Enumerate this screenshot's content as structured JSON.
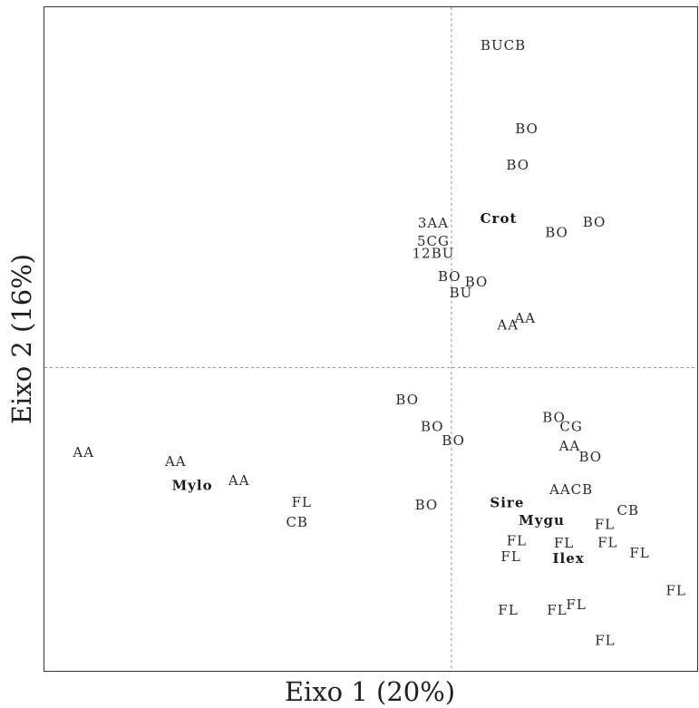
{
  "chart_data": {
    "type": "scatter",
    "title": "",
    "xlabel": "Eixo 1 (20%)",
    "ylabel": "Eixo 2 (16%)",
    "xlim": [
      -10.6,
      6.4
    ],
    "ylim": [
      -8.5,
      10.1
    ],
    "grid": false,
    "reference_lines": {
      "x": 0,
      "y": 0
    },
    "legend": "none",
    "colors": {
      "frame": "#333333",
      "reference_lines": "#9a9a9a",
      "labels": "#2b2b2b"
    },
    "points": [
      {
        "label": "BUCB",
        "x": 1.35,
        "y": 9.03,
        "bold": false
      },
      {
        "label": "BO",
        "x": 1.96,
        "y": 6.7,
        "bold": false
      },
      {
        "label": "BO",
        "x": 1.73,
        "y": 5.68,
        "bold": false
      },
      {
        "label": "3AA",
        "x": -0.47,
        "y": 4.05,
        "bold": false
      },
      {
        "label": "Crot",
        "x": 1.23,
        "y": 4.18,
        "bold": true
      },
      {
        "label": "BO",
        "x": 2.74,
        "y": 3.78,
        "bold": false
      },
      {
        "label": "BO",
        "x": 3.72,
        "y": 4.08,
        "bold": false
      },
      {
        "label": "5CG",
        "x": -0.47,
        "y": 3.55,
        "bold": false
      },
      {
        "label": "12BU",
        "x": -0.47,
        "y": 3.2,
        "bold": false
      },
      {
        "label": "BO",
        "x": -0.05,
        "y": 2.55,
        "bold": false
      },
      {
        "label": "BO",
        "x": 0.65,
        "y": 2.4,
        "bold": false
      },
      {
        "label": "BU",
        "x": 0.25,
        "y": 2.1,
        "bold": false
      },
      {
        "label": "AA",
        "x": 1.47,
        "y": 1.2,
        "bold": false
      },
      {
        "label": "AA",
        "x": 1.92,
        "y": 1.38,
        "bold": false
      },
      {
        "label": "BO",
        "x": -1.15,
        "y": -0.9,
        "bold": false
      },
      {
        "label": "BO",
        "x": -0.5,
        "y": -1.65,
        "bold": false
      },
      {
        "label": "BO",
        "x": 0.05,
        "y": -2.05,
        "bold": false
      },
      {
        "label": "BO",
        "x": 2.67,
        "y": -1.4,
        "bold": false
      },
      {
        "label": "CG",
        "x": 3.12,
        "y": -1.65,
        "bold": false
      },
      {
        "label": "AA",
        "x": 3.08,
        "y": -2.2,
        "bold": false
      },
      {
        "label": "BO",
        "x": 3.62,
        "y": -2.5,
        "bold": false
      },
      {
        "label": "AA",
        "x": -9.58,
        "y": -2.37,
        "bold": false
      },
      {
        "label": "AA",
        "x": -7.18,
        "y": -2.63,
        "bold": false
      },
      {
        "label": "Mylo",
        "x": -6.75,
        "y": -3.3,
        "bold": true
      },
      {
        "label": "AA",
        "x": -5.53,
        "y": -3.17,
        "bold": false
      },
      {
        "label": "FL",
        "x": -3.9,
        "y": -3.77,
        "bold": false
      },
      {
        "label": "CB",
        "x": -4.02,
        "y": -4.33,
        "bold": false
      },
      {
        "label": "BO",
        "x": -0.65,
        "y": -3.85,
        "bold": false
      },
      {
        "label": "Sire",
        "x": 1.45,
        "y": -3.79,
        "bold": true
      },
      {
        "label": "AACB",
        "x": 3.12,
        "y": -3.42,
        "bold": false
      },
      {
        "label": "Mygu",
        "x": 2.35,
        "y": -4.28,
        "bold": true
      },
      {
        "label": "CB",
        "x": 4.6,
        "y": -4.0,
        "bold": false
      },
      {
        "label": "FL",
        "x": 3.99,
        "y": -4.4,
        "bold": false
      },
      {
        "label": "FL",
        "x": 1.7,
        "y": -4.85,
        "bold": false
      },
      {
        "label": "FL",
        "x": 2.93,
        "y": -4.92,
        "bold": false
      },
      {
        "label": "FL",
        "x": 4.07,
        "y": -4.9,
        "bold": false
      },
      {
        "label": "FL",
        "x": 1.55,
        "y": -5.3,
        "bold": false
      },
      {
        "label": "Ilex",
        "x": 3.05,
        "y": -5.35,
        "bold": true
      },
      {
        "label": "FL",
        "x": 4.9,
        "y": -5.2,
        "bold": false
      },
      {
        "label": "FL",
        "x": 5.85,
        "y": -6.25,
        "bold": false
      },
      {
        "label": "FL",
        "x": 1.48,
        "y": -6.8,
        "bold": false
      },
      {
        "label": "FL",
        "x": 2.75,
        "y": -6.8,
        "bold": false
      },
      {
        "label": "FL",
        "x": 3.25,
        "y": -6.65,
        "bold": false
      },
      {
        "label": "FL",
        "x": 4.0,
        "y": -7.65,
        "bold": false
      }
    ]
  }
}
